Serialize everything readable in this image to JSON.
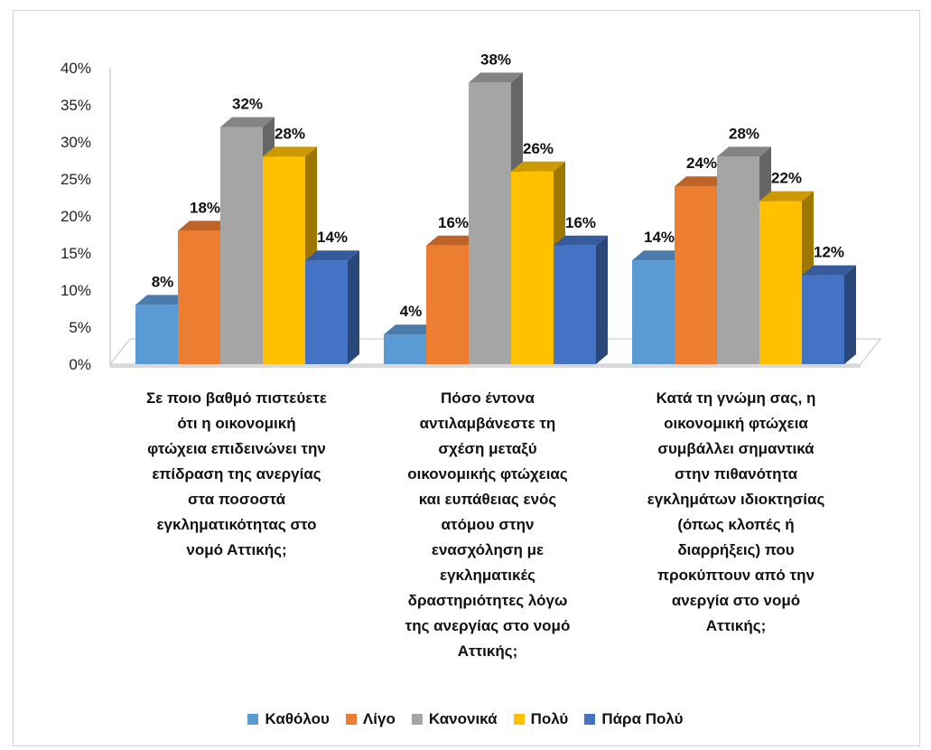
{
  "chart_data": {
    "type": "bar",
    "style": "3d-clustered-column",
    "categories": [
      "Σε ποιο βαθμό πιστεύετε ότι η οικονομική φτώχεια επιδεινώνει την επίδραση της ανεργίας στα ποσοστά εγκληματικότητας στο νομό Αττικής;",
      "Πόσο έντονα αντιλαμβάνεστε τη σχέση μεταξύ οικονομικής φτώχειας και ευπάθειας ενός ατόμου στην ενασχόληση με εγκληματικές δραστηριότητες λόγω της ανεργίας στο νομό Αττικής;",
      "Κατά τη γνώμη σας, η οικονομική φτώχεια συμβάλλει σημαντικά στην πιθανότητα εγκλημάτων ιδιοκτησίας (όπως κλοπές ή διαρρήξεις) που προκύπτουν από την ανεργία στο νομό Αττικής;"
    ],
    "category_lines": [
      [
        "Σε ποιο βαθμό πιστεύετε",
        "ότι η οικονομική",
        "φτώχεια επιδεινώνει την",
        "επίδραση της ανεργίας",
        "στα ποσοστά",
        "εγκληματικότητας στο",
        "νομό Αττικής;"
      ],
      [
        "Πόσο έντονα",
        "αντιλαμβάνεστε τη",
        "σχέση μεταξύ",
        "οικονομικής φτώχειας",
        "και ευπάθειας ενός",
        "ατόμου στην",
        "ενασχόληση με",
        "εγκληματικές",
        "δραστηριότητες λόγω",
        "της ανεργίας στο νομό",
        "Αττικής;"
      ],
      [
        "Κατά τη γνώμη σας, η",
        "οικονομική φτώχεια",
        "συμβάλλει σημαντικά",
        "στην πιθανότητα",
        "εγκλημάτων ιδιοκτησίας",
        "(όπως κλοπές ή",
        "διαρρήξεις) που",
        "προκύπτουν από την",
        "ανεργία στο νομό",
        "Αττικής;"
      ]
    ],
    "series": [
      {
        "name": "Καθόλου",
        "color": "#5b9bd5",
        "values": [
          8,
          4,
          14
        ],
        "labels": [
          "8%",
          "4%",
          "14%"
        ]
      },
      {
        "name": "Λίγο",
        "color": "#ed7d31",
        "values": [
          18,
          16,
          24
        ],
        "labels": [
          "18%",
          "16%",
          "24%"
        ]
      },
      {
        "name": "Κανονικά",
        "color": "#a5a5a5",
        "values": [
          32,
          38,
          28
        ],
        "labels": [
          "32%",
          "38%",
          "28%"
        ]
      },
      {
        "name": "Πολύ",
        "color": "#ffc000",
        "values": [
          28,
          26,
          22
        ],
        "labels": [
          "28%",
          "26%",
          "22%"
        ]
      },
      {
        "name": "Πάρα Πολύ",
        "color": "#4472c4",
        "values": [
          14,
          16,
          12
        ],
        "labels": [
          "14%",
          "16%",
          "12%"
        ]
      }
    ],
    "yticks": [
      "0%",
      "5%",
      "10%",
      "15%",
      "20%",
      "25%",
      "30%",
      "35%",
      "40%"
    ],
    "ylim": [
      0,
      40
    ],
    "unit": "%",
    "grid": false,
    "legend_position": "bottom"
  }
}
